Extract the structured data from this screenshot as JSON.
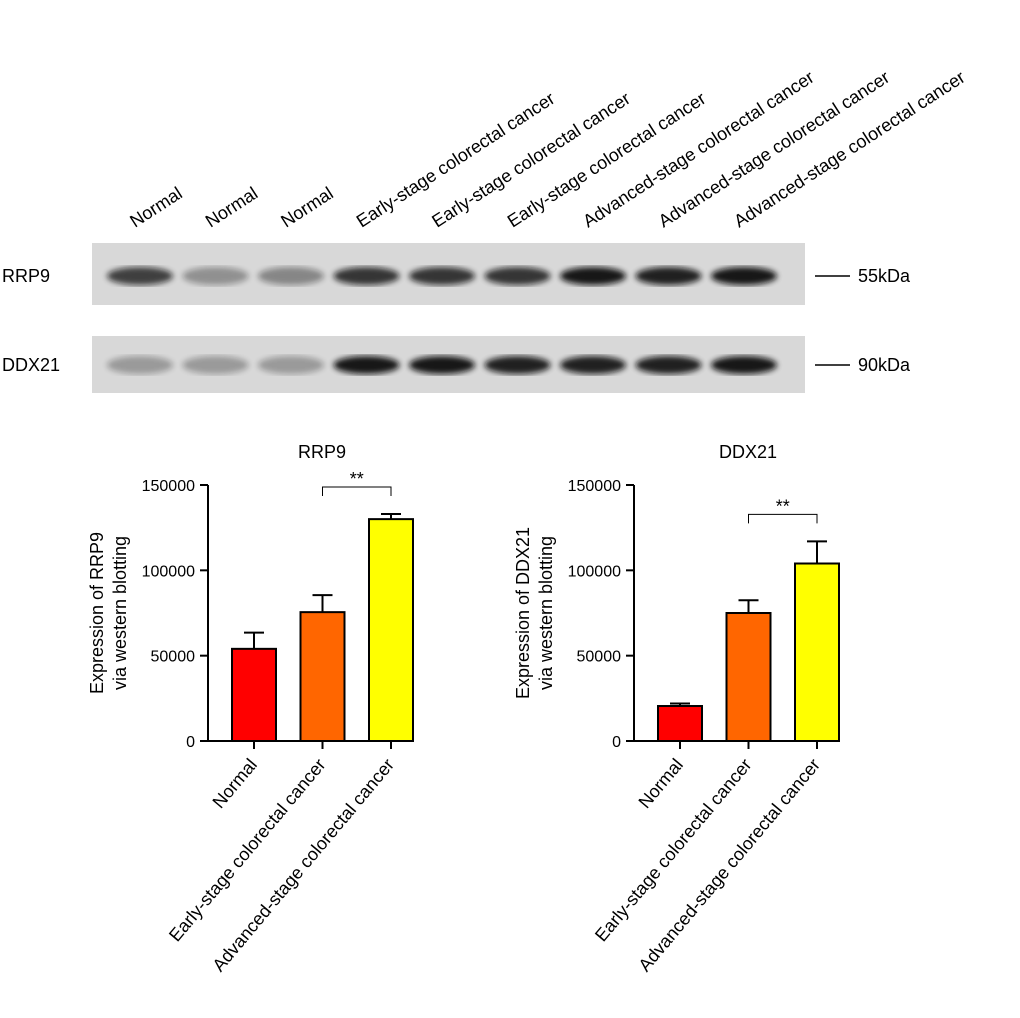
{
  "blot": {
    "lanes": [
      "Normal",
      "Normal",
      "Normal",
      "Early-stage colorectal cancer",
      "Early-stage colorectal cancer",
      "Early-stage colorectal cancer",
      "Advanced-stage colorectal cancer",
      "Advanced-stage colorectal cancer",
      "Advanced-stage colorectal cancer"
    ],
    "rows": [
      {
        "label": "RRP9",
        "marker": "55kDa"
      },
      {
        "label": "DDX21",
        "marker": "90kDa"
      }
    ]
  },
  "chart_data": [
    {
      "type": "bar",
      "title": "RRP9",
      "y_label": [
        "Expression of RRP9",
        "via western blotting"
      ],
      "categories": [
        "Normal",
        "Early-stage colorectal cancer",
        "Advanced-stage colorectal cancer"
      ],
      "values": [
        54000,
        75500,
        130000
      ],
      "errors": [
        9500,
        10000,
        3000
      ],
      "colors": [
        "#ff0000",
        "#ff6600",
        "#ffff00"
      ],
      "ylim": [
        0,
        150000
      ],
      "yticks": [
        0,
        50000,
        100000,
        150000
      ],
      "annotations": [
        {
          "text": "**",
          "between": [
            1,
            2
          ]
        }
      ]
    },
    {
      "type": "bar",
      "title": "DDX21",
      "y_label": [
        "Expression of DDX21",
        "via western blotting"
      ],
      "categories": [
        "Normal",
        "Early-stage colorectal cancer",
        "Advanced-stage colorectal cancer"
      ],
      "values": [
        20500,
        75000,
        104000
      ],
      "errors": [
        1500,
        7500,
        13000
      ],
      "colors": [
        "#ff0000",
        "#ff6600",
        "#ffff00"
      ],
      "ylim": [
        0,
        150000
      ],
      "yticks": [
        0,
        50000,
        100000,
        150000
      ],
      "annotations": [
        {
          "text": "**",
          "between": [
            1,
            2
          ]
        }
      ]
    }
  ]
}
